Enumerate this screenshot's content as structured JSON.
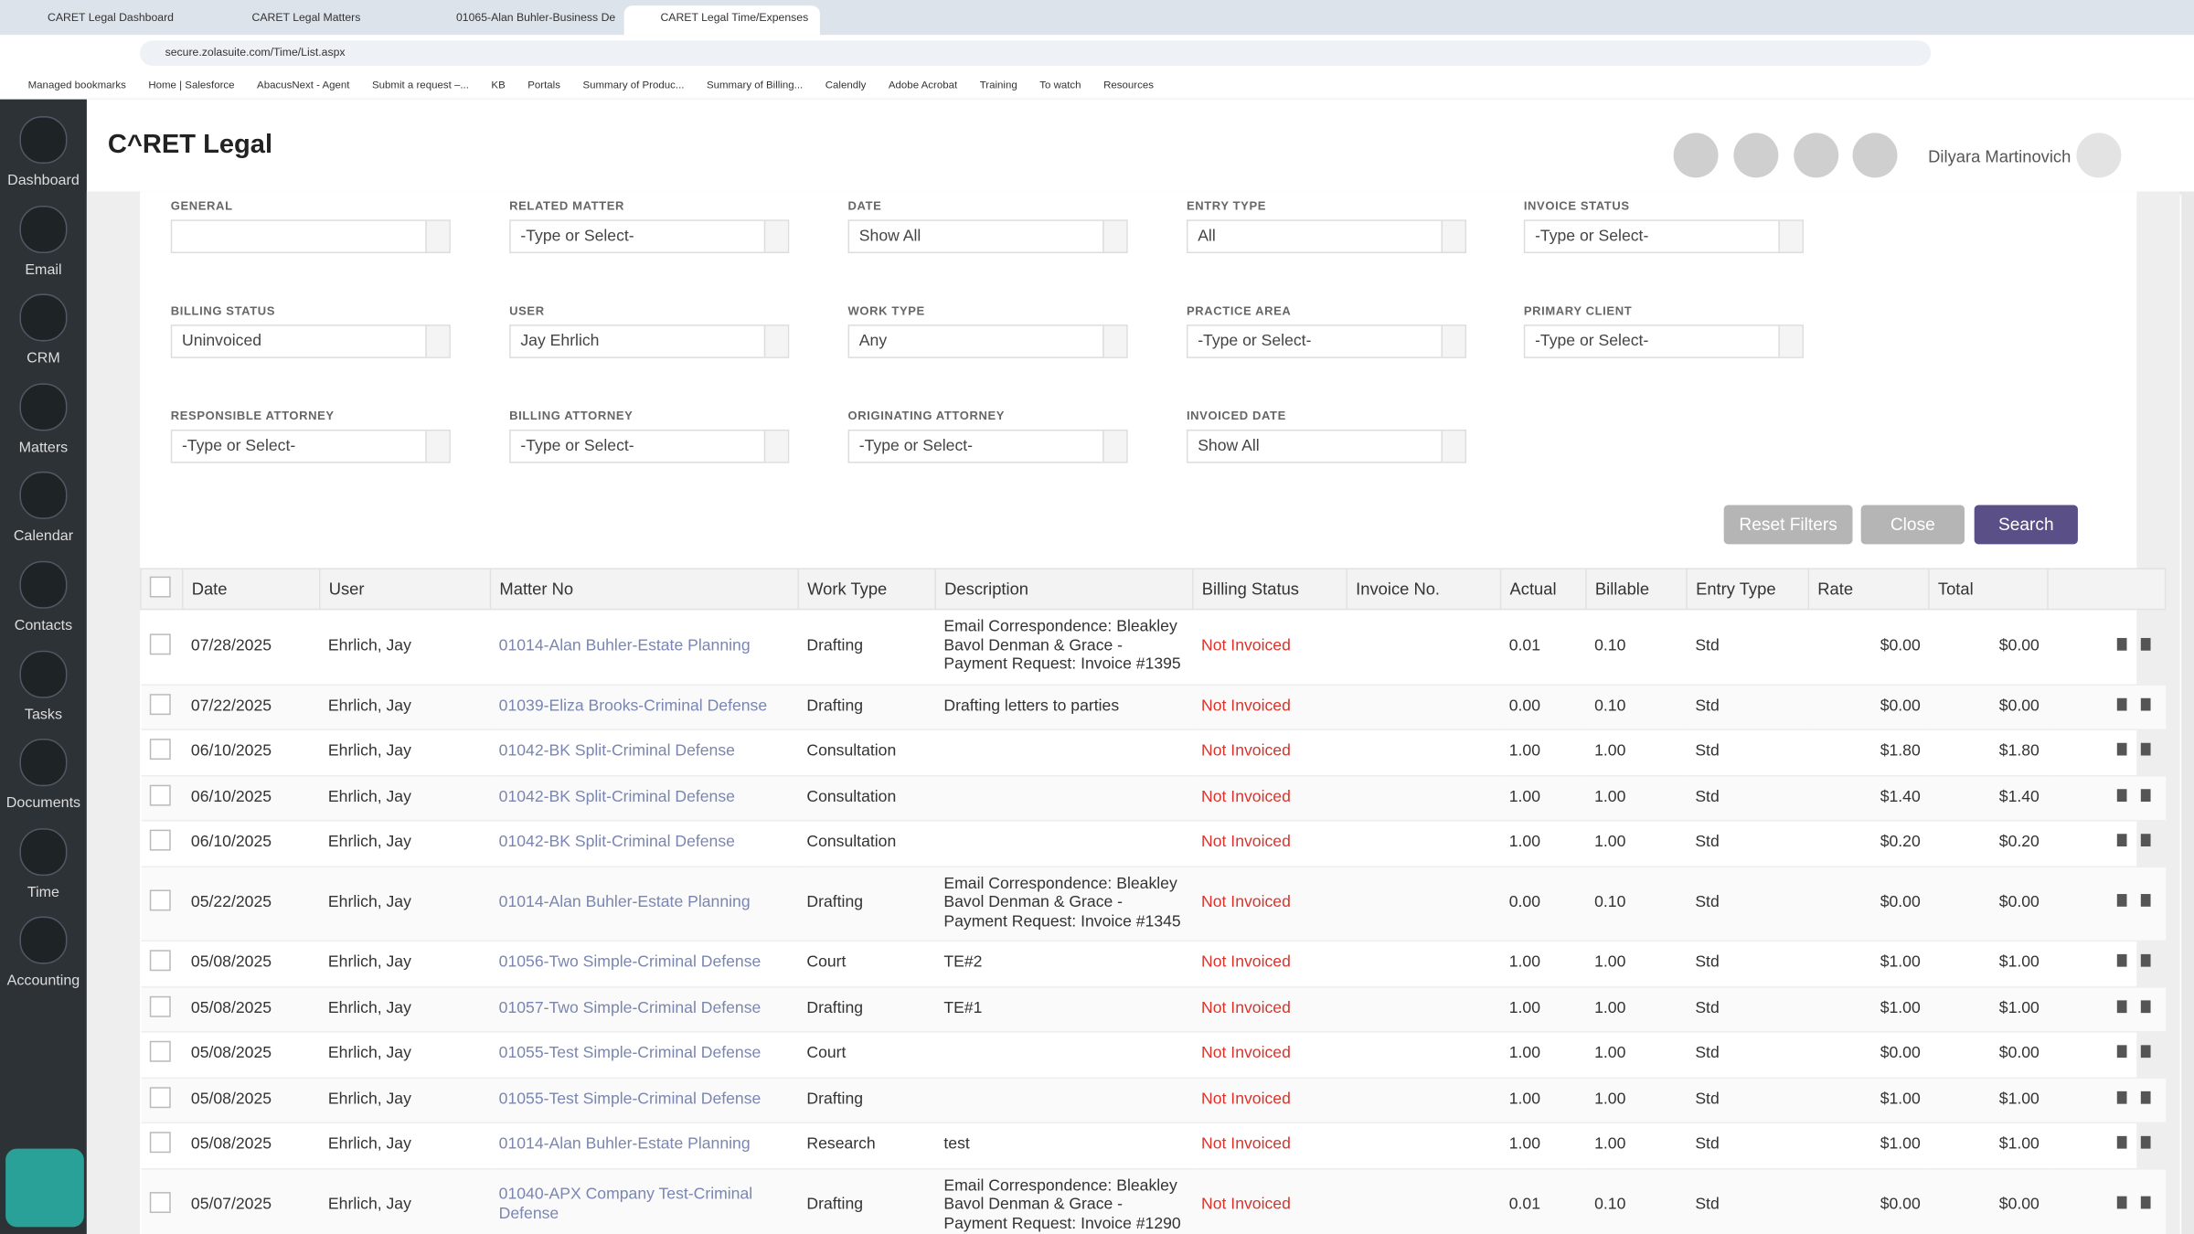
{
  "browser": {
    "tabs": [
      "CARET Legal Dashboard",
      "CARET Legal Matters",
      "01065-Alan Buhler-Business De",
      "CARET Legal Time/Expenses"
    ],
    "url": "secure.zolasuite.com/Time/List.aspx",
    "bookmarks": [
      "Managed bookmarks",
      "Home | Salesforce",
      "AbacusNext - Agent",
      "Submit a request –...",
      "KB",
      "Portals",
      "Summary of Produc...",
      "Summary of Billing...",
      "Calendly",
      "Adobe Acrobat",
      "Training",
      "To watch",
      "Resources"
    ]
  },
  "header": {
    "logo": "C^RET Legal",
    "user": "Dilyara Martinovich"
  },
  "nav": [
    "Dashboard",
    "Email",
    "CRM",
    "Matters",
    "Calendar",
    "Contacts",
    "Tasks",
    "Documents",
    "Time",
    "Accounting"
  ],
  "filters": [
    [
      {
        "label": "GENERAL"
      },
      {
        "label": "RELATED MATTER",
        "value": "-Type or Select-"
      },
      {
        "label": "DATE",
        "value": "Show All"
      },
      {
        "label": "ENTRY TYPE",
        "value": "All"
      },
      {
        "label": "INVOICE STATUS",
        "value": "-Type or Select-"
      }
    ],
    [
      {
        "label": "BILLING STATUS",
        "value": "Uninvoiced"
      },
      {
        "label": "USER",
        "value": "Jay Ehrlich"
      },
      {
        "label": "WORK TYPE",
        "value": "Any"
      },
      {
        "label": "PRACTICE AREA",
        "value": "-Type or Select-"
      },
      {
        "label": "PRIMARY CLIENT",
        "value": "-Type or Select-"
      }
    ],
    [
      {
        "label": "RESPONSIBLE ATTORNEY",
        "value": "-Type or Select-"
      },
      {
        "label": "BILLING ATTORNEY",
        "value": "-Type or Select-"
      },
      {
        "label": "ORIGINATING ATTORNEY",
        "value": "-Type or Select-"
      },
      {
        "label": "INVOICED DATE",
        "value": "Show All"
      }
    ]
  ],
  "buttons": [
    "Reset Filters",
    "Close",
    "Search"
  ],
  "table": {
    "columns": [
      "Date",
      "User",
      "Matter No",
      "Work Type",
      "Description",
      "Billing Status",
      "Invoice No.",
      "Actual",
      "Billable",
      "Entry Type",
      "Rate",
      "Total"
    ],
    "rows": [
      [
        "07/28/2025",
        "Ehrlich, Jay",
        "01014-Alan Buhler-Estate Planning",
        "Drafting",
        "Email Correspondence: Bleakley Bavol Denman & Grace - Payment Request: Invoice #1395",
        "Not Invoiced",
        null,
        "0.01",
        "0.10",
        "Std",
        "$0.00",
        "$0.00"
      ],
      [
        "07/22/2025",
        "Ehrlich, Jay",
        "01039-Eliza Brooks-Criminal Defense",
        "Drafting",
        "Drafting letters to parties",
        "Not Invoiced",
        null,
        "0.00",
        "0.10",
        "Std",
        "$0.00",
        "$0.00"
      ],
      [
        "06/10/2025",
        "Ehrlich, Jay",
        "01042-BK Split-Criminal Defense",
        "Consultation",
        null,
        "Not Invoiced",
        null,
        "1.00",
        "1.00",
        "Std",
        "$1.80",
        "$1.80"
      ],
      [
        "06/10/2025",
        "Ehrlich, Jay",
        "01042-BK Split-Criminal Defense",
        "Consultation",
        null,
        "Not Invoiced",
        null,
        "1.00",
        "1.00",
        "Std",
        "$1.40",
        "$1.40"
      ],
      [
        "06/10/2025",
        "Ehrlich, Jay",
        "01042-BK Split-Criminal Defense",
        "Consultation",
        null,
        "Not Invoiced",
        null,
        "1.00",
        "1.00",
        "Std",
        "$0.20",
        "$0.20"
      ],
      [
        "05/22/2025",
        "Ehrlich, Jay",
        "01014-Alan Buhler-Estate Planning",
        "Drafting",
        "Email Correspondence: Bleakley Bavol Denman & Grace - Payment Request: Invoice #1345",
        "Not Invoiced",
        null,
        "0.00",
        "0.10",
        "Std",
        "$0.00",
        "$0.00"
      ],
      [
        "05/08/2025",
        "Ehrlich, Jay",
        "01056-Two Simple-Criminal Defense",
        "Court",
        "TE#2",
        "Not Invoiced",
        null,
        "1.00",
        "1.00",
        "Std",
        "$1.00",
        "$1.00"
      ],
      [
        "05/08/2025",
        "Ehrlich, Jay",
        "01057-Two Simple-Criminal Defense",
        "Drafting",
        "TE#1",
        "Not Invoiced",
        null,
        "1.00",
        "1.00",
        "Std",
        "$1.00",
        "$1.00"
      ],
      [
        "05/08/2025",
        "Ehrlich, Jay",
        "01055-Test Simple-Criminal Defense",
        "Court",
        null,
        "Not Invoiced",
        null,
        "1.00",
        "1.00",
        "Std",
        "$0.00",
        "$0.00"
      ],
      [
        "05/08/2025",
        "Ehrlich, Jay",
        "01055-Test Simple-Criminal Defense",
        "Drafting",
        null,
        "Not Invoiced",
        null,
        "1.00",
        "1.00",
        "Std",
        "$1.00",
        "$1.00"
      ],
      [
        "05/08/2025",
        "Ehrlich, Jay",
        "01014-Alan Buhler-Estate Planning",
        "Research",
        "test",
        "Not Invoiced",
        null,
        "1.00",
        "1.00",
        "Std",
        "$1.00",
        "$1.00"
      ],
      [
        "05/07/2025",
        "Ehrlich, Jay",
        "01040-APX Company Test-Criminal Defense",
        "Drafting",
        "Email Correspondence: Bleakley Bavol Denman & Grace - Payment Request: Invoice #1290",
        "Not Invoiced",
        null,
        "0.01",
        "0.10",
        "Std",
        "$0.00",
        "$0.00"
      ]
    ]
  }
}
